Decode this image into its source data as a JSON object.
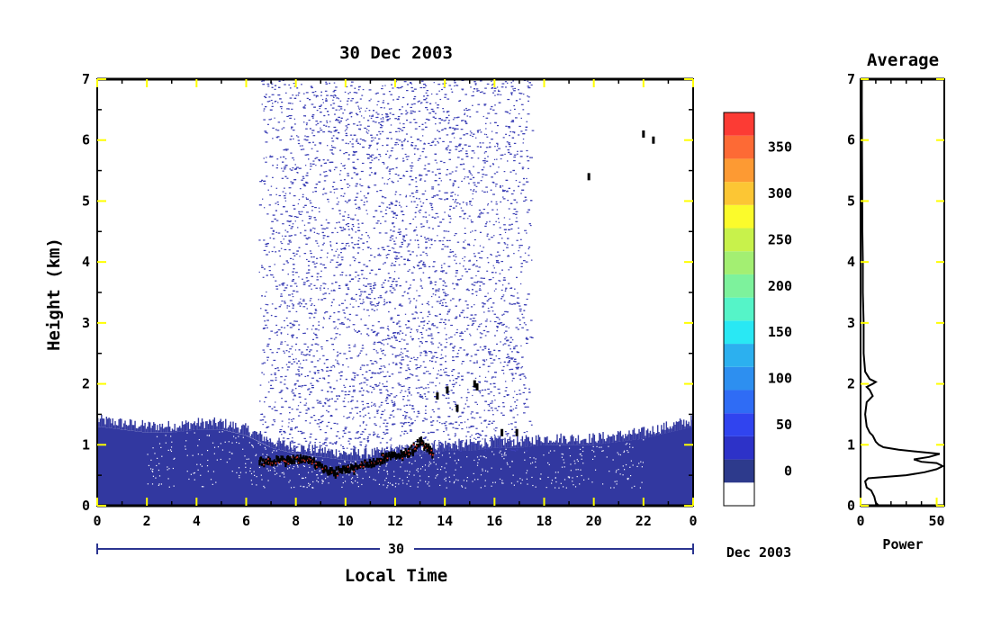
{
  "chart_data": [
    {
      "type": "heatmap",
      "title": "30 Dec 2003",
      "xlabel": "Local Time",
      "ylabel": "Height (km)",
      "xlim": [
        0,
        24
      ],
      "ylim": [
        0,
        7
      ],
      "x_ticks": [
        "0",
        "2",
        "4",
        "6",
        "8",
        "10",
        "12",
        "14",
        "16",
        "18",
        "20",
        "22",
        "0"
      ],
      "y_ticks": [
        "0",
        "1",
        "2",
        "3",
        "4",
        "5",
        "6",
        "7"
      ],
      "date_bar": {
        "day_label": "30",
        "month_year_label": "Dec 2003"
      },
      "background_layer": [
        {
          "x": 0,
          "top": 1.3
        },
        {
          "x": 1,
          "top": 1.25
        },
        {
          "x": 2,
          "top": 1.2
        },
        {
          "x": 3,
          "top": 1.2
        },
        {
          "x": 4,
          "top": 1.25
        },
        {
          "x": 5,
          "top": 1.25
        },
        {
          "x": 6,
          "top": 1.15
        },
        {
          "x": 7,
          "top": 0.95
        },
        {
          "x": 8,
          "top": 0.85
        },
        {
          "x": 9,
          "top": 0.8
        },
        {
          "x": 10,
          "top": 0.75
        },
        {
          "x": 11,
          "top": 0.75
        },
        {
          "x": 12,
          "top": 0.8
        },
        {
          "x": 13,
          "top": 0.85
        },
        {
          "x": 14,
          "top": 0.9
        },
        {
          "x": 15,
          "top": 0.9
        },
        {
          "x": 16,
          "top": 0.95
        },
        {
          "x": 17,
          "top": 0.95
        },
        {
          "x": 18,
          "top": 1.0
        },
        {
          "x": 19,
          "top": 1.0
        },
        {
          "x": 20,
          "top": 1.0
        },
        {
          "x": 21,
          "top": 1.05
        },
        {
          "x": 22,
          "top": 1.1
        },
        {
          "x": 23,
          "top": 1.2
        },
        {
          "x": 24,
          "top": 1.3
        }
      ],
      "noise_region": {
        "x_start": 6.5,
        "x_end": 17.5,
        "y_min": 0.9,
        "y_max": 7.0
      },
      "aerosol_layer_top": [
        {
          "x": 6.5,
          "y": 0.75
        },
        {
          "x": 7.5,
          "y": 0.78
        },
        {
          "x": 8.5,
          "y": 0.8
        },
        {
          "x": 9.0,
          "y": 0.65
        },
        {
          "x": 9.5,
          "y": 0.58
        },
        {
          "x": 10.0,
          "y": 0.62
        },
        {
          "x": 10.5,
          "y": 0.68
        },
        {
          "x": 11.0,
          "y": 0.72
        },
        {
          "x": 11.5,
          "y": 0.82
        },
        {
          "x": 12.0,
          "y": 0.85
        },
        {
          "x": 12.5,
          "y": 0.9
        },
        {
          "x": 13.0,
          "y": 1.1
        },
        {
          "x": 13.5,
          "y": 0.9
        }
      ],
      "cloud_points": [
        {
          "x": 13.7,
          "y": 1.8
        },
        {
          "x": 14.1,
          "y": 1.9
        },
        {
          "x": 14.5,
          "y": 1.6
        },
        {
          "x": 15.2,
          "y": 2.0
        },
        {
          "x": 15.3,
          "y": 1.95
        },
        {
          "x": 16.9,
          "y": 1.2
        },
        {
          "x": 16.3,
          "y": 1.2
        },
        {
          "x": 19.8,
          "y": 5.4
        },
        {
          "x": 22.0,
          "y": 6.1
        },
        {
          "x": 22.4,
          "y": 6.0
        }
      ]
    },
    {
      "type": "line",
      "title": "Average",
      "xlabel": "Power",
      "ylabel": "",
      "xlim": [
        0,
        55
      ],
      "ylim": [
        0,
        7
      ],
      "x_ticks": [
        "0",
        "50"
      ],
      "y_ticks": [
        "0",
        "1",
        "2",
        "3",
        "4",
        "5",
        "6",
        "7"
      ],
      "series": [
        {
          "x": [
            12,
            10,
            9,
            7,
            4,
            3,
            5,
            30,
            42,
            50,
            54,
            50,
            40,
            35,
            45,
            52,
            40,
            25,
            15,
            12,
            10,
            9,
            8,
            6,
            4,
            3,
            4,
            8,
            6,
            4,
            8,
            10,
            6,
            3,
            2,
            2,
            1.5,
            1.5,
            1.2,
            1.0,
            0.8,
            0.8
          ],
          "y": [
            0.0,
            0.05,
            0.15,
            0.25,
            0.3,
            0.4,
            0.45,
            0.5,
            0.55,
            0.6,
            0.65,
            0.7,
            0.72,
            0.76,
            0.8,
            0.85,
            0.88,
            0.92,
            0.96,
            1.0,
            1.05,
            1.1,
            1.15,
            1.2,
            1.3,
            1.5,
            1.7,
            1.8,
            1.9,
            1.95,
            2.0,
            2.03,
            2.08,
            2.2,
            2.5,
            3.0,
            3.5,
            4.0,
            4.5,
            5.5,
            6.5,
            7.0
          ]
        }
      ]
    }
  ],
  "colorbar": {
    "tick_labels": [
      "0",
      "50",
      "100",
      "150",
      "200",
      "250",
      "300",
      "350"
    ],
    "tick_values": [
      0,
      50,
      100,
      150,
      200,
      250,
      300,
      350
    ],
    "levels": [
      -25,
      0,
      25,
      50,
      75,
      100,
      125,
      150,
      175,
      200,
      225,
      250,
      275,
      300,
      325,
      350,
      375
    ],
    "colors": [
      "#ffffff",
      "#2d3a8c",
      "#2d32c8",
      "#3044ef",
      "#2f6cf5",
      "#2d8ff0",
      "#2cb0ef",
      "#29e8f4",
      "#55f4c8",
      "#7df29c",
      "#a3ef72",
      "#c8f24b",
      "#fbfb2b",
      "#fcc634",
      "#fd9a33",
      "#fd6a35",
      "#fc3b34"
    ]
  },
  "colors": {
    "frame": "#000000",
    "tick_mark": "#ffff00",
    "axis_line": "#2b3590",
    "noise": "#3b3fb5",
    "layer": "#3238a0",
    "aerosol": "#000000",
    "aerosol_core": "#e83a2a",
    "profile_line": "#000000"
  }
}
